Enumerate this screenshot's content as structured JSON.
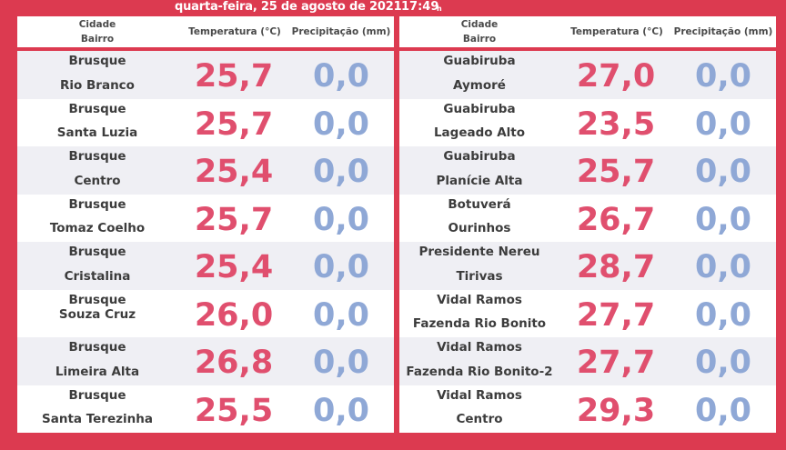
{
  "header": {
    "date": "quarta-feira, 25 de agosto de 2021",
    "time": "17:49",
    "time_suffix": "h"
  },
  "columns": {
    "city": "Cidade",
    "district": "Bairro",
    "temperature": "Temperatura (°C)",
    "precipitation": "Precipitação (mm)"
  },
  "colors": {
    "background": "#dc3a50",
    "temperature": "#e04f6e",
    "precipitation": "#8fa8d6"
  },
  "left": [
    {
      "city": "Brusque",
      "district": "Rio Branco",
      "temp": "25,7",
      "prec": "0,0"
    },
    {
      "city": "Brusque",
      "district": "Santa Luzia",
      "temp": "25,7",
      "prec": "0,0"
    },
    {
      "city": "Brusque",
      "district": "Centro",
      "temp": "25,4",
      "prec": "0,0"
    },
    {
      "city": "Brusque",
      "district": "Tomaz Coelho",
      "temp": "25,7",
      "prec": "0,0"
    },
    {
      "city": "Brusque",
      "district": "Cristalina",
      "temp": "25,4",
      "prec": "0,0"
    },
    {
      "city": "Brusque",
      "district": "Souza Cruz",
      "temp": "26,0",
      "prec": "0,0"
    },
    {
      "city": "Brusque",
      "district": "Limeira Alta",
      "temp": "26,8",
      "prec": "0,0"
    },
    {
      "city": "Brusque",
      "district": "Santa Terezinha",
      "temp": "25,5",
      "prec": "0,0"
    }
  ],
  "right": [
    {
      "city": "Guabiruba",
      "district": "Aymoré",
      "temp": "27,0",
      "prec": "0,0"
    },
    {
      "city": "Guabiruba",
      "district": "Lageado Alto",
      "temp": "23,5",
      "prec": "0,0"
    },
    {
      "city": "Guabiruba",
      "district": "Planície Alta",
      "temp": "25,7",
      "prec": "0,0"
    },
    {
      "city": "Botuverá",
      "district": "Ourinhos",
      "temp": "26,7",
      "prec": "0,0"
    },
    {
      "city": "Presidente Nereu",
      "district": "Tirivas",
      "temp": "28,7",
      "prec": "0,0"
    },
    {
      "city": "Vidal Ramos",
      "district": "Fazenda Rio Bonito",
      "temp": "27,7",
      "prec": "0,0"
    },
    {
      "city": "Vidal Ramos",
      "district": "Fazenda Rio Bonito-2",
      "temp": "27,7",
      "prec": "0,0"
    },
    {
      "city": "Vidal Ramos",
      "district": "Centro",
      "temp": "29,3",
      "prec": "0,0"
    }
  ]
}
